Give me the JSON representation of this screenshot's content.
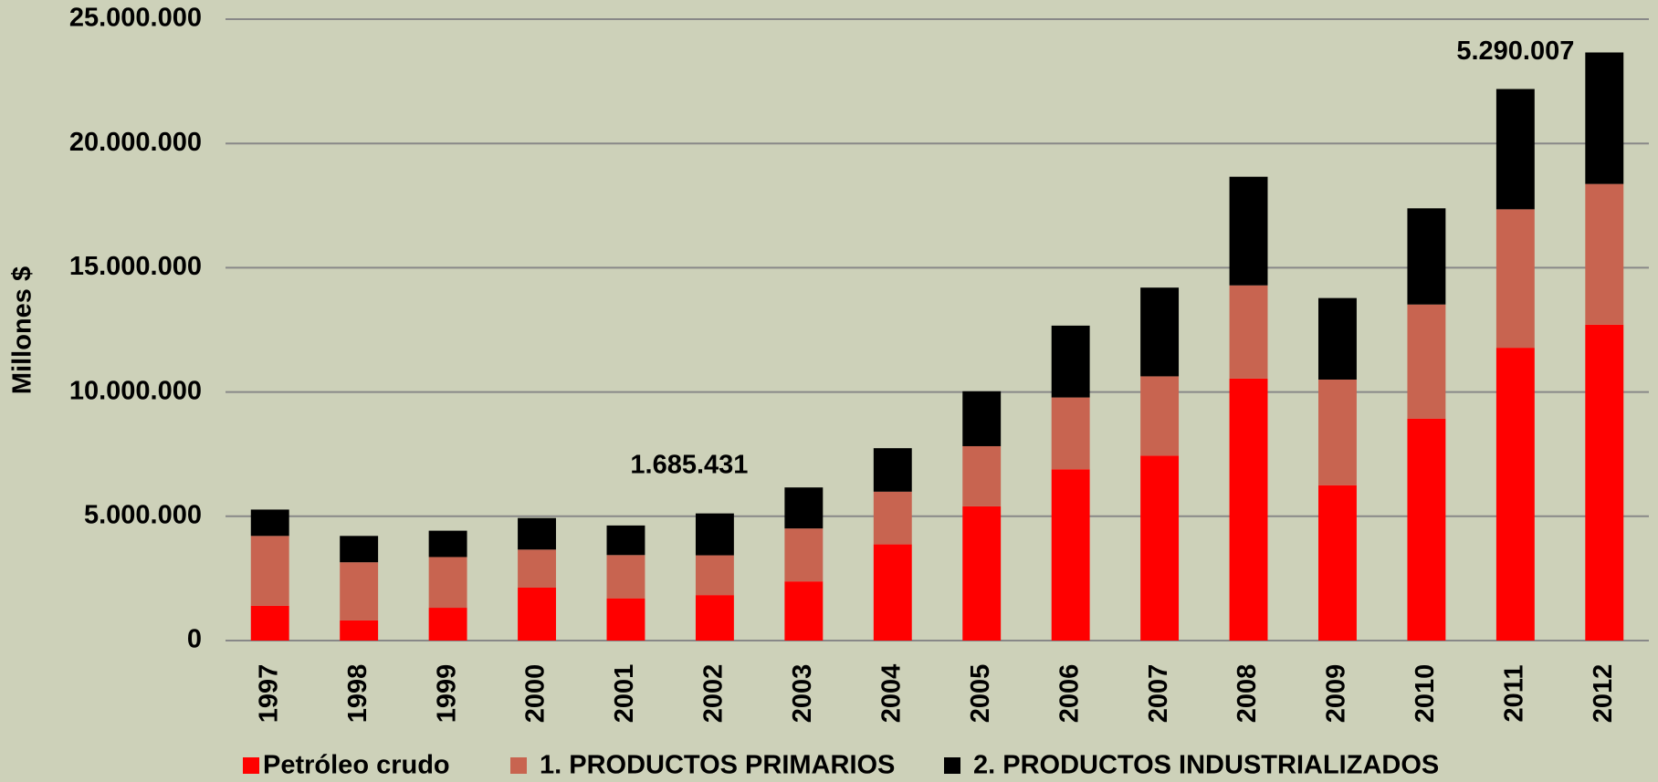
{
  "chart_data": {
    "type": "stacked_bar",
    "y_label": "Millones $",
    "categories": [
      "1997",
      "1998",
      "1999",
      "2000",
      "2001",
      "2002",
      "2003",
      "2004",
      "2005",
      "2006",
      "2007",
      "2008",
      "2009",
      "2010",
      "2011",
      "2012"
    ],
    "series": [
      {
        "name": "Petróleo crudo",
        "color": "#ff0000",
        "values": [
          1400000,
          810000,
          1320000,
          2130000,
          1700000,
          1830000,
          2380000,
          3870000,
          5400000,
          6890000,
          7440000,
          10540000,
          6250000,
          8930000,
          11780000,
          12710000
        ]
      },
      {
        "name": "1. PRODUCTOS PRIMARIOS",
        "color": "#c86450",
        "values": [
          2810000,
          2340000,
          2040000,
          1530000,
          1740000,
          1600000,
          2130000,
          2120000,
          2420000,
          2890000,
          3190000,
          3750000,
          4250000,
          4590000,
          5570000,
          5660000
        ]
      },
      {
        "name": "2. PRODUCTOS INDUSTRIALIZADOS",
        "color": "#000000",
        "values": [
          1060000,
          1060000,
          1060000,
          1270000,
          1190000,
          1685431,
          1650000,
          1750000,
          2210000,
          2890000,
          3570000,
          4370000,
          3280000,
          3870000,
          4840000,
          5290007
        ],
        "value_labels": [
          null,
          null,
          null,
          null,
          null,
          "1.685.431",
          null,
          null,
          null,
          null,
          null,
          null,
          null,
          null,
          null,
          "5.290.007"
        ]
      }
    ],
    "ylim": [
      0,
      25000000
    ],
    "yticks": [
      0,
      {
        "value": 5000000,
        "label": "5.000.000"
      },
      {
        "value": 10000000,
        "label": "10.000.000"
      },
      {
        "value": 15000000,
        "label": "15.000.000"
      },
      {
        "value": 20000000,
        "label": "20.000.000"
      },
      {
        "value": 25000000,
        "label": "25.000.000"
      }
    ],
    "grid": true,
    "legend": "bottom"
  }
}
